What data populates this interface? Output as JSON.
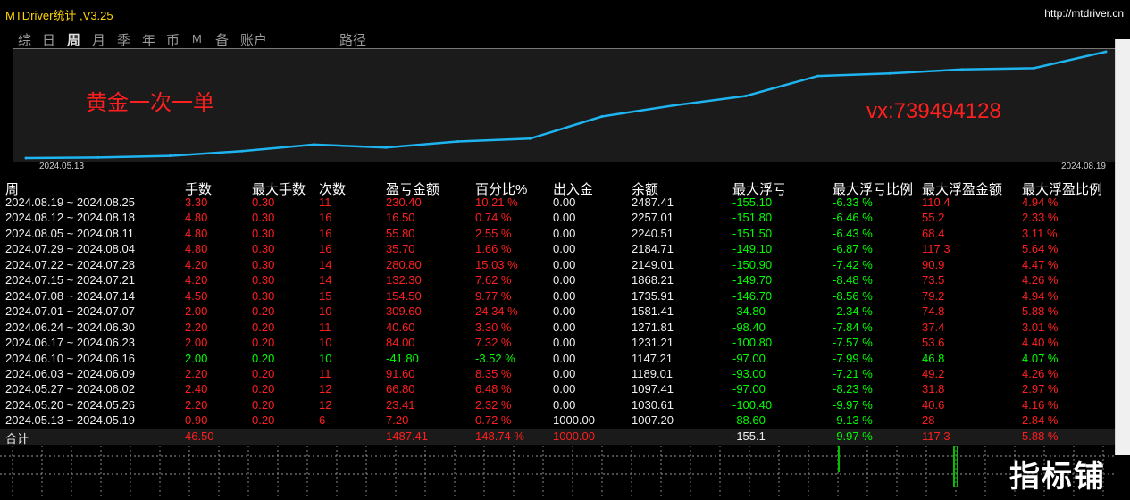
{
  "window": {
    "title": "MTDriver统计 ,V3.25",
    "url": "http://mtdriver.cn"
  },
  "tabs": [
    {
      "label": "综"
    },
    {
      "label": "日"
    },
    {
      "label": "周",
      "active": true
    },
    {
      "label": "月"
    },
    {
      "label": "季"
    },
    {
      "label": "年"
    },
    {
      "label": "币"
    },
    {
      "label": "M"
    },
    {
      "label": "备"
    },
    {
      "label": "账户"
    },
    {
      "label": "路径"
    }
  ],
  "chart": {
    "annotation_left": "黄金一次一单",
    "annotation_right": "vx:739494128",
    "start_date": "2024.05.13",
    "end_date": "2024.08.19",
    "line_color": "#1eb4f0",
    "background": "#1b1b1b"
  },
  "chart_data": {
    "type": "line",
    "series": [
      {
        "values": [
          1000.0,
          1007.2,
          1030.61,
          1097.41,
          1189.01,
          1147.21,
          1231.21,
          1271.81,
          1581.41,
          1735.91,
          1868.21,
          2149.01,
          2184.71,
          2240.51,
          2257.01,
          2487.41
        ]
      }
    ],
    "xlabel": "",
    "ylabel": ""
  },
  "table": {
    "headers": [
      "周",
      "手数",
      "最大手数",
      "次数",
      "盈亏金额",
      "百分比%",
      "出入金",
      "余额",
      "最大浮亏",
      "最大浮亏比例",
      "最大浮盈金额",
      "最大浮盈比例"
    ],
    "rows": [
      {
        "week": "2024.08.19 ~ 2024.08.25",
        "lots": "3.30",
        "max_lots": "0.30",
        "count": "11",
        "pl": "230.40",
        "pct": "10.21 %",
        "io": "0.00",
        "balance": "2487.41",
        "max_dd": "-155.10",
        "dd_pct": "-6.33 %",
        "max_fp": "110.4",
        "fp_pct": "4.94 %",
        "color": "red"
      },
      {
        "week": "2024.08.12 ~ 2024.08.18",
        "lots": "4.80",
        "max_lots": "0.30",
        "count": "16",
        "pl": "16.50",
        "pct": "0.74 %",
        "io": "0.00",
        "balance": "2257.01",
        "max_dd": "-151.80",
        "dd_pct": "-6.46 %",
        "max_fp": "55.2",
        "fp_pct": "2.33 %",
        "color": "red"
      },
      {
        "week": "2024.08.05 ~ 2024.08.11",
        "lots": "4.80",
        "max_lots": "0.30",
        "count": "16",
        "pl": "55.80",
        "pct": "2.55 %",
        "io": "0.00",
        "balance": "2240.51",
        "max_dd": "-151.50",
        "dd_pct": "-6.43 %",
        "max_fp": "68.4",
        "fp_pct": "3.11 %",
        "color": "red"
      },
      {
        "week": "2024.07.29 ~ 2024.08.04",
        "lots": "4.80",
        "max_lots": "0.30",
        "count": "16",
        "pl": "35.70",
        "pct": "1.66 %",
        "io": "0.00",
        "balance": "2184.71",
        "max_dd": "-149.10",
        "dd_pct": "-6.87 %",
        "max_fp": "117.3",
        "fp_pct": "5.64 %",
        "color": "red"
      },
      {
        "week": "2024.07.22 ~ 2024.07.28",
        "lots": "4.20",
        "max_lots": "0.30",
        "count": "14",
        "pl": "280.80",
        "pct": "15.03 %",
        "io": "0.00",
        "balance": "2149.01",
        "max_dd": "-150.90",
        "dd_pct": "-7.42 %",
        "max_fp": "90.9",
        "fp_pct": "4.47 %",
        "color": "red"
      },
      {
        "week": "2024.07.15 ~ 2024.07.21",
        "lots": "4.20",
        "max_lots": "0.30",
        "count": "14",
        "pl": "132.30",
        "pct": "7.62 %",
        "io": "0.00",
        "balance": "1868.21",
        "max_dd": "-149.70",
        "dd_pct": "-8.48 %",
        "max_fp": "73.5",
        "fp_pct": "4.26 %",
        "color": "red"
      },
      {
        "week": "2024.07.08 ~ 2024.07.14",
        "lots": "4.50",
        "max_lots": "0.30",
        "count": "15",
        "pl": "154.50",
        "pct": "9.77 %",
        "io": "0.00",
        "balance": "1735.91",
        "max_dd": "-146.70",
        "dd_pct": "-8.56 %",
        "max_fp": "79.2",
        "fp_pct": "4.94 %",
        "color": "red"
      },
      {
        "week": "2024.07.01 ~ 2024.07.07",
        "lots": "2.00",
        "max_lots": "0.20",
        "count": "10",
        "pl": "309.60",
        "pct": "24.34 %",
        "io": "0.00",
        "balance": "1581.41",
        "max_dd": "-34.80",
        "dd_pct": "-2.34 %",
        "max_fp": "74.8",
        "fp_pct": "5.88 %",
        "color": "red"
      },
      {
        "week": "2024.06.24 ~ 2024.06.30",
        "lots": "2.20",
        "max_lots": "0.20",
        "count": "11",
        "pl": "40.60",
        "pct": "3.30 %",
        "io": "0.00",
        "balance": "1271.81",
        "max_dd": "-98.40",
        "dd_pct": "-7.84 %",
        "max_fp": "37.4",
        "fp_pct": "3.01 %",
        "color": "red"
      },
      {
        "week": "2024.06.17 ~ 2024.06.23",
        "lots": "2.00",
        "max_lots": "0.20",
        "count": "10",
        "pl": "84.00",
        "pct": "7.32 %",
        "io": "0.00",
        "balance": "1231.21",
        "max_dd": "-100.80",
        "dd_pct": "-7.57 %",
        "max_fp": "53.6",
        "fp_pct": "4.40 %",
        "color": "red"
      },
      {
        "week": "2024.06.10 ~ 2024.06.16",
        "lots": "2.00",
        "max_lots": "0.20",
        "count": "10",
        "pl": "-41.80",
        "pct": "-3.52 %",
        "io": "0.00",
        "balance": "1147.21",
        "max_dd": "-97.00",
        "dd_pct": "-7.99 %",
        "max_fp": "46.8",
        "fp_pct": "4.07 %",
        "color": "green"
      },
      {
        "week": "2024.06.03 ~ 2024.06.09",
        "lots": "2.20",
        "max_lots": "0.20",
        "count": "11",
        "pl": "91.60",
        "pct": "8.35 %",
        "io": "0.00",
        "balance": "1189.01",
        "max_dd": "-93.00",
        "dd_pct": "-7.21 %",
        "max_fp": "49.2",
        "fp_pct": "4.26 %",
        "color": "red"
      },
      {
        "week": "2024.05.27 ~ 2024.06.02",
        "lots": "2.40",
        "max_lots": "0.20",
        "count": "12",
        "pl": "66.80",
        "pct": "6.48 %",
        "io": "0.00",
        "balance": "1097.41",
        "max_dd": "-97.00",
        "dd_pct": "-8.23 %",
        "max_fp": "31.8",
        "fp_pct": "2.97 %",
        "color": "red"
      },
      {
        "week": "2024.05.20 ~ 2024.05.26",
        "lots": "2.20",
        "max_lots": "0.20",
        "count": "12",
        "pl": "23.41",
        "pct": "2.32 %",
        "io": "0.00",
        "balance": "1030.61",
        "max_dd": "-100.40",
        "dd_pct": "-9.97 %",
        "max_fp": "40.6",
        "fp_pct": "4.16 %",
        "color": "red"
      },
      {
        "week": "2024.05.13 ~ 2024.05.19",
        "lots": "0.90",
        "max_lots": "0.20",
        "count": "6",
        "pl": "7.20",
        "pct": "0.72 %",
        "io": "1000.00",
        "balance": "1007.20",
        "max_dd": "-88.60",
        "dd_pct": "-9.13 %",
        "max_fp": "28",
        "fp_pct": "2.84 %",
        "color": "red"
      }
    ],
    "total": {
      "label": "合计",
      "lots": "46.50",
      "pl": "1487.41",
      "pct": "148.74 %",
      "io": "1000.00",
      "max_dd": "-155.1",
      "dd_pct": "-9.97 %",
      "max_fp": "117.3",
      "fp_pct": "5.88 %"
    }
  },
  "watermark": "指标铺",
  "colors": {
    "profit": "#ff1f1f",
    "loss": "#00ff00",
    "title": "#ffd700"
  }
}
